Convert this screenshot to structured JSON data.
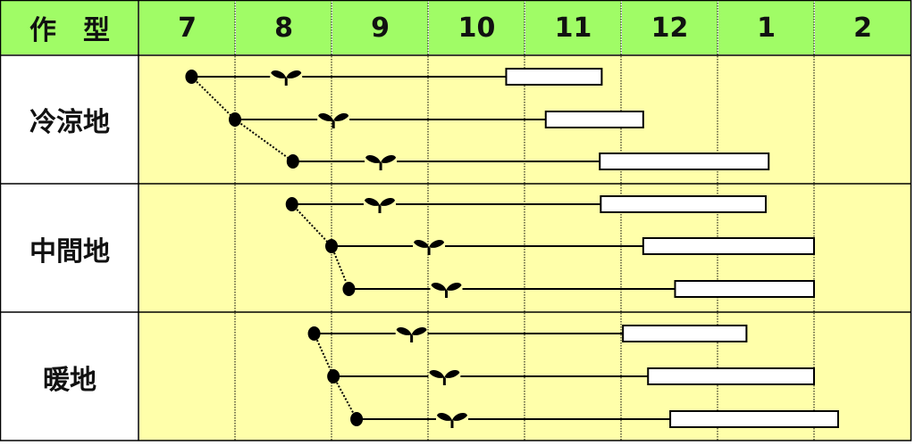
{
  "header": {
    "type_label": "作　型",
    "months": [
      "7",
      "8",
      "9",
      "10",
      "11",
      "12",
      "1",
      "2"
    ]
  },
  "colors": {
    "header_bg": "#a0fc66",
    "body_bg": "#ffffaa",
    "line": "#000000"
  },
  "legend_icons": {
    "sowing": "filled-circle",
    "planting": "sprout-icon",
    "harvest": "open-rectangle"
  },
  "groups": [
    {
      "label": "冷涼地",
      "rows": [
        {
          "sow": [
            7,
            0.55
          ],
          "plant": [
            8,
            0.53
          ],
          "harvest_start": [
            10,
            0.81
          ],
          "harvest_end": [
            11,
            0.8
          ]
        },
        {
          "sow": [
            8,
            0.0
          ],
          "plant": [
            9,
            0.02
          ],
          "harvest_start": [
            11,
            0.22
          ],
          "harvest_end": [
            12,
            0.23
          ]
        },
        {
          "sow": [
            8,
            0.6
          ],
          "plant": [
            9,
            0.51
          ],
          "harvest_start": [
            11,
            0.78
          ],
          "harvest_end": [
            1,
            0.53
          ]
        }
      ]
    },
    {
      "label": "中間地",
      "rows": [
        {
          "sow": [
            8,
            0.59
          ],
          "plant": [
            9,
            0.5
          ],
          "harvest_start": [
            11,
            0.79
          ],
          "harvest_end": [
            1,
            0.5
          ]
        },
        {
          "sow": [
            9,
            0.0
          ],
          "plant": [
            10,
            0.01
          ],
          "harvest_start": [
            12,
            0.23
          ],
          "harvest_end": [
            2,
            0.0
          ]
        },
        {
          "sow": [
            9,
            0.18
          ],
          "plant": [
            10,
            0.19
          ],
          "harvest_start": [
            12,
            0.56
          ],
          "harvest_end": [
            2,
            0.0
          ]
        }
      ]
    },
    {
      "label": "暖地",
      "rows": [
        {
          "sow": [
            8,
            0.82
          ],
          "plant": [
            9,
            0.83
          ],
          "harvest_start": [
            12,
            0.02
          ],
          "harvest_end": [
            1,
            0.3
          ]
        },
        {
          "sow": [
            9,
            0.02
          ],
          "plant": [
            10,
            0.17
          ],
          "harvest_start": [
            12,
            0.28
          ],
          "harvest_end": [
            2,
            0.0
          ]
        },
        {
          "sow": [
            9,
            0.26
          ],
          "plant": [
            10,
            0.25
          ],
          "harvest_start": [
            12,
            0.51
          ],
          "harvest_end": [
            2,
            0.25
          ]
        }
      ]
    }
  ]
}
